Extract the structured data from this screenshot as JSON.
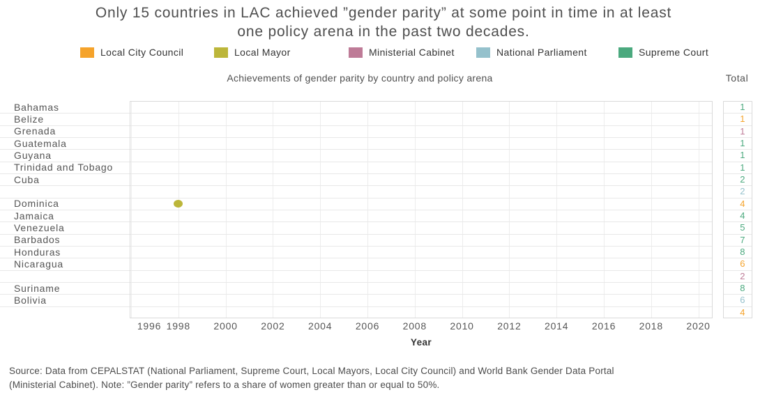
{
  "header": {
    "title_line1": "Only 15 countries in LAC achieved ”gender parity” at some point in time in at least",
    "title_line2": "one policy arena in the past two decades."
  },
  "colors": {
    "Local City Council": "#F5A32B",
    "Local Mayor": "#BCB63A",
    "Ministerial Cabinet": "#BE7B97",
    "National Parliament": "#95C1CC",
    "Supreme Court": "#4BA97E"
  },
  "legend": {
    "items": [
      "Local City Council",
      "Local Mayor",
      "Ministerial Cabinet",
      "National Parliament",
      "Supreme Court"
    ]
  },
  "chart_data": {
    "type": "scatter",
    "title": "Achievements of gender parity by country and policy arena",
    "total_column_label": "Total",
    "xlabel": "Year",
    "x_ticks": [
      1996,
      1998,
      2000,
      2002,
      2004,
      2006,
      2008,
      2010,
      2012,
      2014,
      2016,
      2018,
      2020
    ],
    "x_range": [
      1996,
      2021
    ],
    "grid": true,
    "legend_position": "top",
    "countries": [
      {
        "country": "Bahamas",
        "totals": [
          {
            "value": 1,
            "arena": "Supreme Court"
          }
        ]
      },
      {
        "country": "Belize",
        "totals": [
          {
            "value": 1,
            "arena": "Local City Council"
          }
        ]
      },
      {
        "country": "Grenada",
        "totals": [
          {
            "value": 1,
            "arena": "Ministerial Cabinet"
          }
        ]
      },
      {
        "country": "Guatemala",
        "totals": [
          {
            "value": 1,
            "arena": "Supreme Court"
          }
        ]
      },
      {
        "country": "Guyana",
        "totals": [
          {
            "value": 1,
            "arena": "Supreme Court"
          }
        ]
      },
      {
        "country": "Trinidad and Tobago",
        "totals": [
          {
            "value": 1,
            "arena": "Supreme Court"
          }
        ]
      },
      {
        "country": "Cuba",
        "totals": [
          {
            "value": 2,
            "arena": "Supreme Court"
          },
          {
            "value": 2,
            "arena": "National Parliament"
          }
        ]
      },
      {
        "country": "Dominica",
        "totals": [
          {
            "value": 4,
            "arena": "Local City Council"
          }
        ]
      },
      {
        "country": "Jamaica",
        "totals": [
          {
            "value": 4,
            "arena": "Supreme Court"
          }
        ]
      },
      {
        "country": "Venezuela",
        "totals": [
          {
            "value": 5,
            "arena": "Supreme Court"
          }
        ]
      },
      {
        "country": "Barbados",
        "totals": [
          {
            "value": 7,
            "arena": "Supreme Court"
          }
        ]
      },
      {
        "country": "Honduras",
        "totals": [
          {
            "value": 8,
            "arena": "Supreme Court"
          }
        ]
      },
      {
        "country": "Nicaragua",
        "totals": [
          {
            "value": 6,
            "arena": "Local City Council"
          },
          {
            "value": 2,
            "arena": "Ministerial Cabinet"
          }
        ]
      },
      {
        "country": "Suriname",
        "totals": [
          {
            "value": 8,
            "arena": "Supreme Court"
          }
        ]
      },
      {
        "country": "Bolivia",
        "totals": [
          {
            "value": 6,
            "arena": "National Parliament"
          },
          {
            "value": 4,
            "arena": "Local City Council"
          }
        ]
      }
    ],
    "points": [
      {
        "country": "Dominica",
        "year": 1998,
        "arena": "Local Mayor"
      }
    ]
  },
  "footer": {
    "source_line1": "Source: Data from CEPALSTAT (National Parliament, Supreme Court, Local Mayors, Local City Council) and World Bank Gender Data Portal",
    "source_line2": "(Ministerial Cabinet). Note: ”Gender parity” refers to a share of women greater than or equal to 50%."
  }
}
